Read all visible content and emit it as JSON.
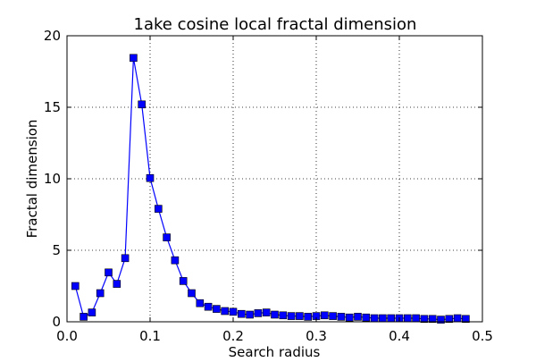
{
  "chart_data": {
    "type": "line",
    "title": "1ake cosine local fractal dimension",
    "xlabel": "Search radius",
    "ylabel": "Fractal dimension",
    "xlim": [
      0.0,
      0.5
    ],
    "ylim": [
      0,
      20
    ],
    "xticks": [
      "0.0",
      "0.1",
      "0.2",
      "0.3",
      "0.4",
      "0.5"
    ],
    "yticks": [
      "0",
      "5",
      "10",
      "15",
      "20"
    ],
    "grid": true,
    "marker": "square",
    "color": "#0000ff",
    "series": [
      {
        "x": [
          0.01,
          0.02,
          0.03,
          0.04,
          0.05,
          0.06,
          0.07,
          0.08,
          0.09,
          0.1,
          0.11,
          0.12,
          0.13,
          0.14,
          0.15,
          0.16,
          0.17,
          0.18,
          0.19,
          0.2,
          0.21,
          0.22,
          0.23,
          0.24,
          0.25,
          0.26,
          0.27,
          0.28,
          0.29,
          0.3,
          0.31,
          0.32,
          0.33,
          0.34,
          0.35,
          0.36,
          0.37,
          0.38,
          0.39,
          0.4,
          0.41,
          0.42,
          0.43,
          0.44,
          0.45,
          0.46,
          0.47,
          0.48
        ],
        "y": [
          2.5,
          0.35,
          0.65,
          2.0,
          3.45,
          2.65,
          4.45,
          18.45,
          15.2,
          10.05,
          7.9,
          5.9,
          4.3,
          2.85,
          2.0,
          1.3,
          1.05,
          0.9,
          0.75,
          0.7,
          0.55,
          0.5,
          0.6,
          0.65,
          0.5,
          0.45,
          0.4,
          0.4,
          0.35,
          0.4,
          0.45,
          0.4,
          0.35,
          0.3,
          0.35,
          0.3,
          0.25,
          0.25,
          0.25,
          0.25,
          0.25,
          0.25,
          0.2,
          0.2,
          0.15,
          0.2,
          0.25,
          0.2
        ]
      }
    ]
  }
}
